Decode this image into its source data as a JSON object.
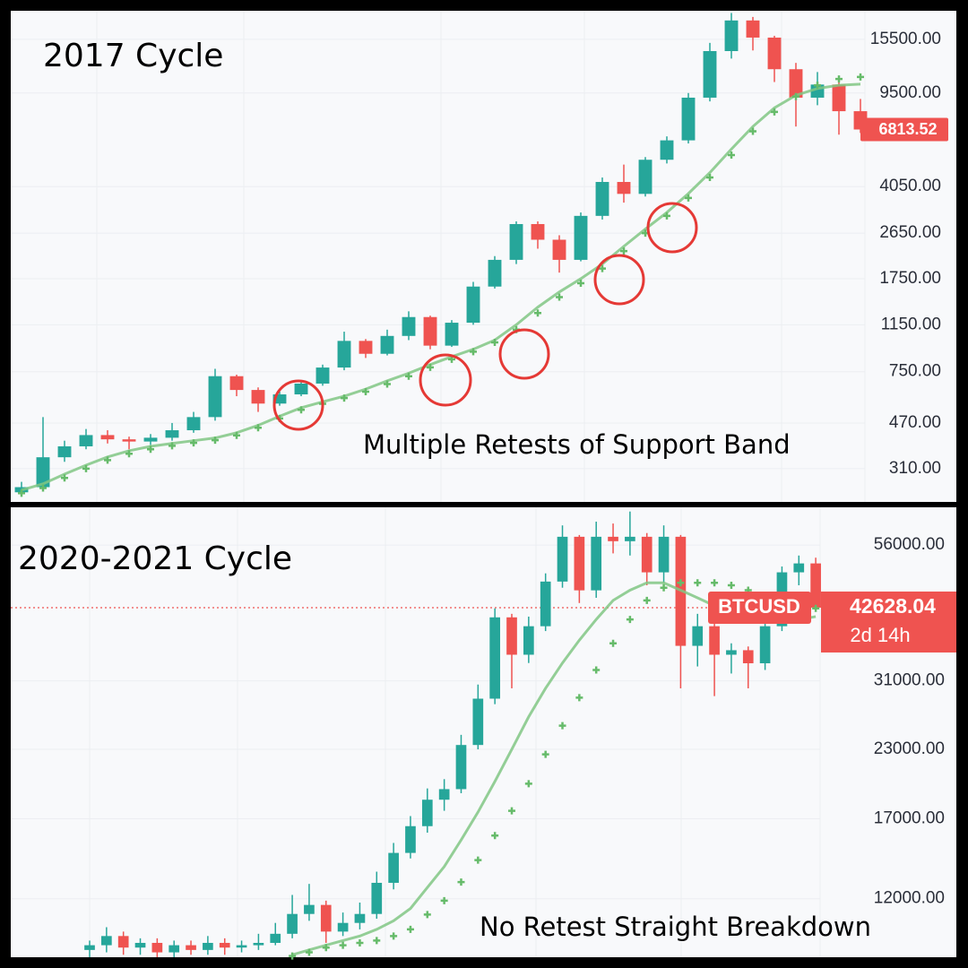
{
  "chart_data": [
    {
      "type": "candlestick",
      "title": "2017 Cycle",
      "annotation": "Multiple Retests of Support Band",
      "log_scale": true,
      "grid": true,
      "up_color": "#26a69a",
      "down_color": "#ef5350",
      "ylim": [
        229,
        20100
      ],
      "yticks": [
        {
          "value": 310,
          "label": "310.00"
        },
        {
          "value": 470,
          "label": "470.00"
        },
        {
          "value": 750,
          "label": "750.00"
        },
        {
          "value": 1150,
          "label": "1150.00"
        },
        {
          "value": 1750,
          "label": "1750.00"
        },
        {
          "value": 2650,
          "label": "2650.00"
        },
        {
          "value": 4050,
          "label": "4050.00"
        },
        {
          "value": 9500,
          "label": "9500.00"
        },
        {
          "value": 15500,
          "label": "15500.00"
        }
      ],
      "open": [
        250,
        262,
        344,
        380,
        421,
        405,
        397,
        411,
        440,
        496,
        720,
        635,
        561,
        610,
        673,
        779,
        993,
        883,
        1039,
        1234,
        951,
        1172,
        1629,
        2078,
        2879,
        2496,
        2078,
        3102,
        4225,
        3790,
        5172,
        6172,
        9106,
        13920,
        18400,
        15740,
        11800,
        9106,
        10260,
        8050
      ],
      "high": [
        275,
        496,
        400,
        445,
        440,
        415,
        425,
        470,
        520,
        770,
        730,
        650,
        625,
        690,
        800,
        1080,
        1010,
        1100,
        1300,
        1250,
        1200,
        1700,
        2150,
        2950,
        2950,
        2600,
        3200,
        4400,
        4950,
        5300,
        6400,
        9500,
        15000,
        19700,
        19000,
        16000,
        12500,
        11500,
        11000,
        9000
      ],
      "low": [
        240,
        255,
        330,
        370,
        390,
        370,
        385,
        400,
        430,
        480,
        600,
        520,
        550,
        600,
        660,
        760,
        850,
        870,
        1000,
        920,
        940,
        1150,
        1600,
        2000,
        2300,
        1850,
        2050,
        3000,
        3500,
        3700,
        5000,
        6000,
        8800,
        13000,
        14000,
        10500,
        7000,
        8500,
        6500,
        6600
      ],
      "close": [
        262,
        344,
        380,
        421,
        405,
        397,
        411,
        440,
        496,
        720,
        635,
        561,
        610,
        673,
        779,
        993,
        883,
        1039,
        1234,
        951,
        1172,
        1629,
        2078,
        2879,
        2496,
        2078,
        3102,
        4225,
        3790,
        5172,
        6172,
        9106,
        13920,
        18400,
        15740,
        11800,
        9106,
        10260,
        8050,
        6813.52
      ],
      "bands": [
        {
          "style": "line",
          "color": "#81c784",
          "values": [
            255,
            270,
            295,
            320,
            345,
            365,
            380,
            390,
            400,
            410,
            430,
            460,
            500,
            540,
            570,
            600,
            640,
            690,
            740,
            800,
            860,
            920,
            1000,
            1150,
            1350,
            1550,
            1750,
            2000,
            2350,
            2750,
            3200,
            3800,
            4600,
            5700,
            7000,
            8300,
            9300,
            9900,
            10200,
            10300
          ]
        },
        {
          "style": "cross",
          "color": "#66bb6a",
          "values": [
            248,
            260,
            285,
            310,
            335,
            355,
            370,
            382,
            392,
            402,
            420,
            450,
            490,
            530,
            560,
            590,
            625,
            670,
            720,
            780,
            840,
            900,
            980,
            1100,
            1280,
            1480,
            1680,
            1920,
            2250,
            2650,
            3100,
            3650,
            4400,
            5400,
            6700,
            8000,
            9200,
            10200,
            10800,
            11000
          ]
        }
      ],
      "last_price": 6813.52,
      "last_price_color": "#ef5350"
    },
    {
      "type": "candlestick",
      "title": "2020-2021 Cycle",
      "annotation": "No Retest Straight Breakdown",
      "log_scale": true,
      "grid": true,
      "up_color": "#26a69a",
      "down_color": "#ef5350",
      "ylim": [
        9300,
        66000
      ],
      "yticks": [
        {
          "value": 12000,
          "label": "12000.00"
        },
        {
          "value": 17000,
          "label": "17000.00"
        },
        {
          "value": 23000,
          "label": "23000.00"
        },
        {
          "value": 31000,
          "label": "31000.00"
        },
        {
          "value": 56000,
          "label": "56000.00"
        }
      ],
      "open": [
        9600,
        9800,
        10200,
        9700,
        9900,
        9500,
        9800,
        9600,
        9900,
        9700,
        9800,
        9900,
        10300,
        11230,
        11680,
        10400,
        10800,
        11230,
        12860,
        14650,
        16460,
        18470,
        19340,
        23440,
        28680,
        40870,
        34730,
        39320,
        47760,
        58050,
        45970,
        58050,
        56940,
        58050,
        49720,
        58050,
        36100,
        39320,
        34730,
        35420,
        33460,
        39320,
        49720,
        51690
      ],
      "high": [
        10000,
        10600,
        10400,
        10100,
        10100,
        10000,
        10000,
        10200,
        10100,
        10000,
        10300,
        10800,
        12200,
        12800,
        11900,
        11300,
        11800,
        13500,
        15300,
        17200,
        19400,
        20200,
        24500,
        30500,
        42500,
        41500,
        41000,
        49500,
        61000,
        58500,
        62000,
        61500,
        64800,
        59000,
        61000,
        58500,
        41500,
        40000,
        36500,
        36000,
        41500,
        51000,
        53500,
        53000
      ],
      "low": [
        9300,
        9500,
        9400,
        9400,
        9300,
        9300,
        9400,
        9400,
        9400,
        9500,
        9600,
        9800,
        10100,
        10900,
        9900,
        10200,
        10500,
        11000,
        12500,
        14300,
        16000,
        17600,
        19000,
        23000,
        28000,
        30000,
        33500,
        38500,
        46500,
        43500,
        44500,
        54000,
        53500,
        47000,
        47500,
        30000,
        33000,
        29000,
        32000,
        30000,
        32500,
        38500,
        47000,
        42000
      ],
      "close": [
        9800,
        10200,
        9700,
        9900,
        9500,
        9800,
        9600,
        9900,
        9700,
        9800,
        9900,
        10300,
        11230,
        11680,
        10400,
        10800,
        11230,
        12860,
        14650,
        16460,
        18470,
        19340,
        23440,
        28680,
        40870,
        34730,
        39320,
        47760,
        58050,
        45970,
        58050,
        56940,
        58050,
        49720,
        58050,
        36100,
        39320,
        34730,
        35420,
        33460,
        39320,
        49720,
        51690,
        42628.04
      ],
      "bands": [
        {
          "style": "line",
          "color": "#81c784",
          "values": [
            null,
            null,
            null,
            null,
            null,
            null,
            null,
            null,
            null,
            null,
            null,
            null,
            9400,
            9600,
            9800,
            10000,
            10200,
            10500,
            10900,
            11500,
            12600,
            13800,
            15500,
            17500,
            20000,
            23000,
            26500,
            30000,
            33500,
            37000,
            40500,
            44000,
            46000,
            47500,
            47500,
            46000,
            44500,
            43000,
            41500,
            40500,
            40000,
            40000,
            40500,
            41000
          ]
        },
        {
          "style": "cross",
          "color": "#66bb6a",
          "values": [
            null,
            null,
            null,
            null,
            null,
            null,
            null,
            null,
            null,
            null,
            null,
            null,
            9350,
            9500,
            9700,
            9800,
            9900,
            10000,
            10200,
            10500,
            11200,
            11900,
            12900,
            14200,
            15800,
            17600,
            19800,
            22500,
            25500,
            28800,
            32500,
            36500,
            40500,
            44000,
            46500,
            47500,
            47500,
            47500,
            47000,
            46000,
            45000,
            44000,
            43000,
            42500
          ]
        }
      ],
      "last_price": 42628.04,
      "last_price_color": "#ef5350",
      "price_line": true,
      "symbol": "BTCUSD",
      "countdown": "2d 14h"
    }
  ]
}
